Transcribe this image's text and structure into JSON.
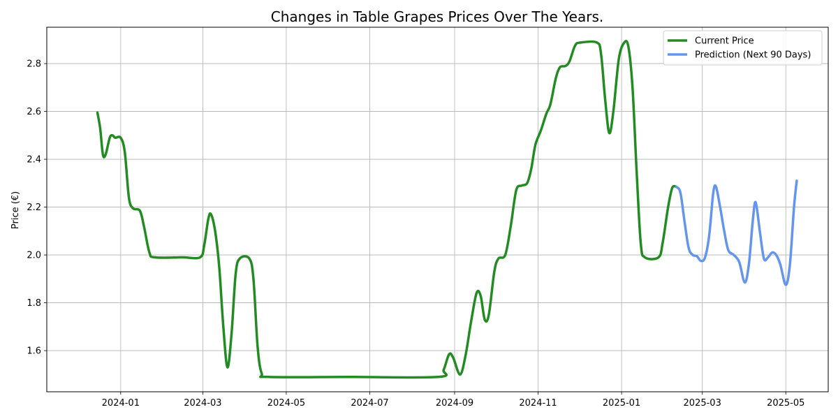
{
  "chart_data": {
    "type": "line",
    "title": "Changes in Table Grapes Prices Over The Years.",
    "xlabel": "",
    "ylabel": "Price (€)",
    "xlim": [
      "2023-11-08",
      "2025-06-01"
    ],
    "ylim": [
      1.428,
      2.952
    ],
    "grid": true,
    "legend_position": "top-right",
    "x_ticks": [
      {
        "date": "2024-01-01",
        "label": "2024-01"
      },
      {
        "date": "2024-03-01",
        "label": "2024-03"
      },
      {
        "date": "2024-05-01",
        "label": "2024-05"
      },
      {
        "date": "2024-07-01",
        "label": "2024-07"
      },
      {
        "date": "2024-09-01",
        "label": "2024-09"
      },
      {
        "date": "2024-11-01",
        "label": "2024-11"
      },
      {
        "date": "2025-01-01",
        "label": "2025-01"
      },
      {
        "date": "2025-03-01",
        "label": "2025-03"
      },
      {
        "date": "2025-05-01",
        "label": "2025-05"
      }
    ],
    "y_ticks": [
      {
        "value": 1.6,
        "label": "1.6"
      },
      {
        "value": 1.8,
        "label": "1.8"
      },
      {
        "value": 2.0,
        "label": "2.0"
      },
      {
        "value": 2.2,
        "label": "2.2"
      },
      {
        "value": 2.4,
        "label": "2.4"
      },
      {
        "value": 2.6,
        "label": "2.6"
      },
      {
        "value": 2.8,
        "label": "2.8"
      }
    ],
    "series": [
      {
        "name": "Current Price",
        "color": "#228B22",
        "points": [
          [
            "2023-12-15",
            2.595
          ],
          [
            "2023-12-17",
            2.53
          ],
          [
            "2023-12-19",
            2.42
          ],
          [
            "2023-12-21",
            2.42
          ],
          [
            "2023-12-24",
            2.49
          ],
          [
            "2023-12-26",
            2.5
          ],
          [
            "2023-12-28",
            2.49
          ],
          [
            "2024-01-01",
            2.49
          ],
          [
            "2024-01-04",
            2.43
          ],
          [
            "2024-01-07",
            2.24
          ],
          [
            "2024-01-10",
            2.195
          ],
          [
            "2024-01-15",
            2.185
          ],
          [
            "2024-01-18",
            2.12
          ],
          [
            "2024-01-22",
            2.01
          ],
          [
            "2024-01-26",
            1.99
          ],
          [
            "2024-02-15",
            1.99
          ],
          [
            "2024-02-28",
            1.99
          ],
          [
            "2024-03-02",
            2.04
          ],
          [
            "2024-03-05",
            2.15
          ],
          [
            "2024-03-07",
            2.17
          ],
          [
            "2024-03-10",
            2.1
          ],
          [
            "2024-03-13",
            1.95
          ],
          [
            "2024-03-16",
            1.7
          ],
          [
            "2024-03-19",
            1.53
          ],
          [
            "2024-03-22",
            1.67
          ],
          [
            "2024-03-25",
            1.92
          ],
          [
            "2024-03-28",
            1.985
          ],
          [
            "2024-04-04",
            1.985
          ],
          [
            "2024-04-07",
            1.9
          ],
          [
            "2024-04-10",
            1.62
          ],
          [
            "2024-04-13",
            1.505
          ],
          [
            "2024-04-18",
            1.49
          ],
          [
            "2024-06-15",
            1.49
          ],
          [
            "2024-08-20",
            1.49
          ],
          [
            "2024-08-24",
            1.52
          ],
          [
            "2024-08-28",
            1.585
          ],
          [
            "2024-08-31",
            1.57
          ],
          [
            "2024-09-05",
            1.5
          ],
          [
            "2024-09-09",
            1.58
          ],
          [
            "2024-09-13",
            1.72
          ],
          [
            "2024-09-17",
            1.84
          ],
          [
            "2024-09-20",
            1.83
          ],
          [
            "2024-09-23",
            1.73
          ],
          [
            "2024-09-26",
            1.75
          ],
          [
            "2024-09-30",
            1.93
          ],
          [
            "2024-10-03",
            1.985
          ],
          [
            "2024-10-08",
            2.0
          ],
          [
            "2024-10-12",
            2.12
          ],
          [
            "2024-10-16",
            2.27
          ],
          [
            "2024-10-20",
            2.29
          ],
          [
            "2024-10-24",
            2.3
          ],
          [
            "2024-10-27",
            2.36
          ],
          [
            "2024-10-30",
            2.46
          ],
          [
            "2024-11-03",
            2.52
          ],
          [
            "2024-11-07",
            2.59
          ],
          [
            "2024-11-10",
            2.63
          ],
          [
            "2024-11-14",
            2.74
          ],
          [
            "2024-11-17",
            2.785
          ],
          [
            "2024-11-21",
            2.79
          ],
          [
            "2024-11-24",
            2.81
          ],
          [
            "2024-11-28",
            2.875
          ],
          [
            "2024-12-02",
            2.888
          ],
          [
            "2024-12-14",
            2.888
          ],
          [
            "2024-12-17",
            2.84
          ],
          [
            "2024-12-20",
            2.65
          ],
          [
            "2024-12-23",
            2.51
          ],
          [
            "2024-12-26",
            2.6
          ],
          [
            "2024-12-30",
            2.82
          ],
          [
            "2025-01-03",
            2.888
          ],
          [
            "2025-01-06",
            2.87
          ],
          [
            "2025-01-09",
            2.7
          ],
          [
            "2025-01-12",
            2.35
          ],
          [
            "2025-01-15",
            2.05
          ],
          [
            "2025-01-18",
            1.99
          ],
          [
            "2025-01-28",
            1.99
          ],
          [
            "2025-01-31",
            2.05
          ],
          [
            "2025-02-04",
            2.2
          ],
          [
            "2025-02-07",
            2.28
          ],
          [
            "2025-02-10",
            2.285
          ]
        ]
      },
      {
        "name": "Prediction (Next 90 Days)",
        "color": "#6495ED",
        "points": [
          [
            "2025-02-10",
            2.285
          ],
          [
            "2025-02-13",
            2.26
          ],
          [
            "2025-02-16",
            2.14
          ],
          [
            "2025-02-19",
            2.03
          ],
          [
            "2025-02-22",
            2.0
          ],
          [
            "2025-02-25",
            1.995
          ],
          [
            "2025-02-28",
            1.975
          ],
          [
            "2025-03-03",
            1.99
          ],
          [
            "2025-03-06",
            2.08
          ],
          [
            "2025-03-09",
            2.26
          ],
          [
            "2025-03-11",
            2.285
          ],
          [
            "2025-03-14",
            2.2
          ],
          [
            "2025-03-17",
            2.1
          ],
          [
            "2025-03-20",
            2.02
          ],
          [
            "2025-03-24",
            2.0
          ],
          [
            "2025-03-28",
            1.97
          ],
          [
            "2025-04-01",
            1.885
          ],
          [
            "2025-04-04",
            1.96
          ],
          [
            "2025-04-07",
            2.15
          ],
          [
            "2025-04-09",
            2.22
          ],
          [
            "2025-04-12",
            2.1
          ],
          [
            "2025-04-15",
            1.985
          ],
          [
            "2025-04-18",
            1.99
          ],
          [
            "2025-04-21",
            2.01
          ],
          [
            "2025-04-24",
            2.0
          ],
          [
            "2025-04-27",
            1.96
          ],
          [
            "2025-05-01",
            1.875
          ],
          [
            "2025-05-04",
            1.96
          ],
          [
            "2025-05-07",
            2.2
          ],
          [
            "2025-05-09",
            2.31
          ]
        ]
      }
    ]
  }
}
